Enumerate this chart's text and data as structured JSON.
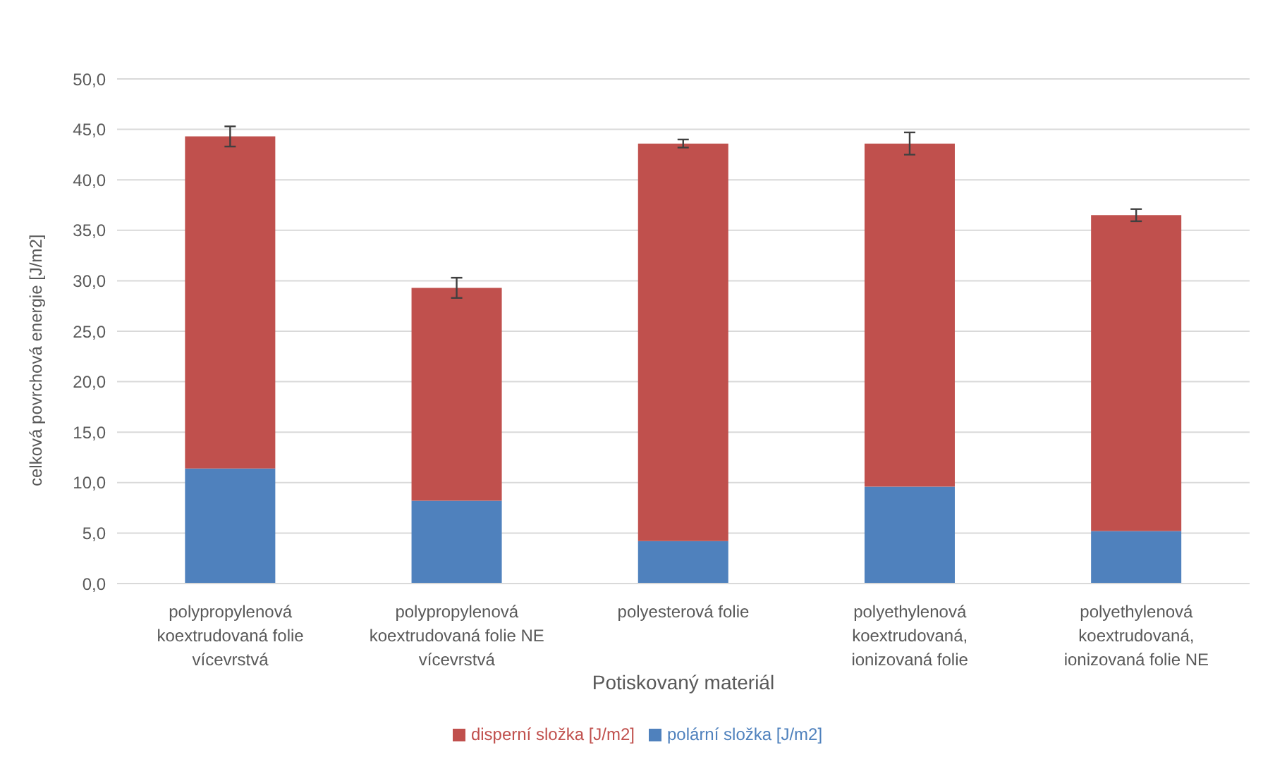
{
  "chart_data": {
    "type": "bar",
    "stacked": true,
    "xlabel": "Potiskovaný materiál",
    "ylabel": "celková povrchová energie [J/m2]",
    "categories": [
      "polypropylenová\nkoextrudovaná folie\nvícevrstvá",
      "polypropylenová\nkoextrudovaná folie NE\nvícevrstvá",
      "polyesterová folie",
      "polyethylenová\nkoextrudovaná,\nionizovaná folie",
      "polyethylenová\nkoextrudovaná,\nionizovaná folie NE"
    ],
    "series": [
      {
        "name": "polární složka [J/m2]",
        "color": "#4f81bd",
        "values": [
          11.4,
          8.2,
          4.2,
          9.6,
          5.2
        ]
      },
      {
        "name": "disperní složka [J/m2]",
        "color": "#c0504d",
        "values": [
          32.9,
          21.1,
          39.4,
          34.0,
          31.3
        ],
        "errors": [
          1.0,
          1.0,
          0.4,
          1.1,
          0.6
        ]
      }
    ],
    "ylim": [
      0,
      50
    ],
    "yticks": [
      {
        "value": 0,
        "label": "0,0"
      },
      {
        "value": 5,
        "label": "5,0"
      },
      {
        "value": 10,
        "label": "10,0"
      },
      {
        "value": 15,
        "label": "15,0"
      },
      {
        "value": 20,
        "label": "20,0"
      },
      {
        "value": 25,
        "label": "25,0"
      },
      {
        "value": 30,
        "label": "30,0"
      },
      {
        "value": 35,
        "label": "35,0"
      },
      {
        "value": 40,
        "label": "40,0"
      },
      {
        "value": 45,
        "label": "45,0"
      },
      {
        "value": 50,
        "label": "50,0"
      }
    ],
    "grid": "y",
    "legend": "bottom"
  }
}
